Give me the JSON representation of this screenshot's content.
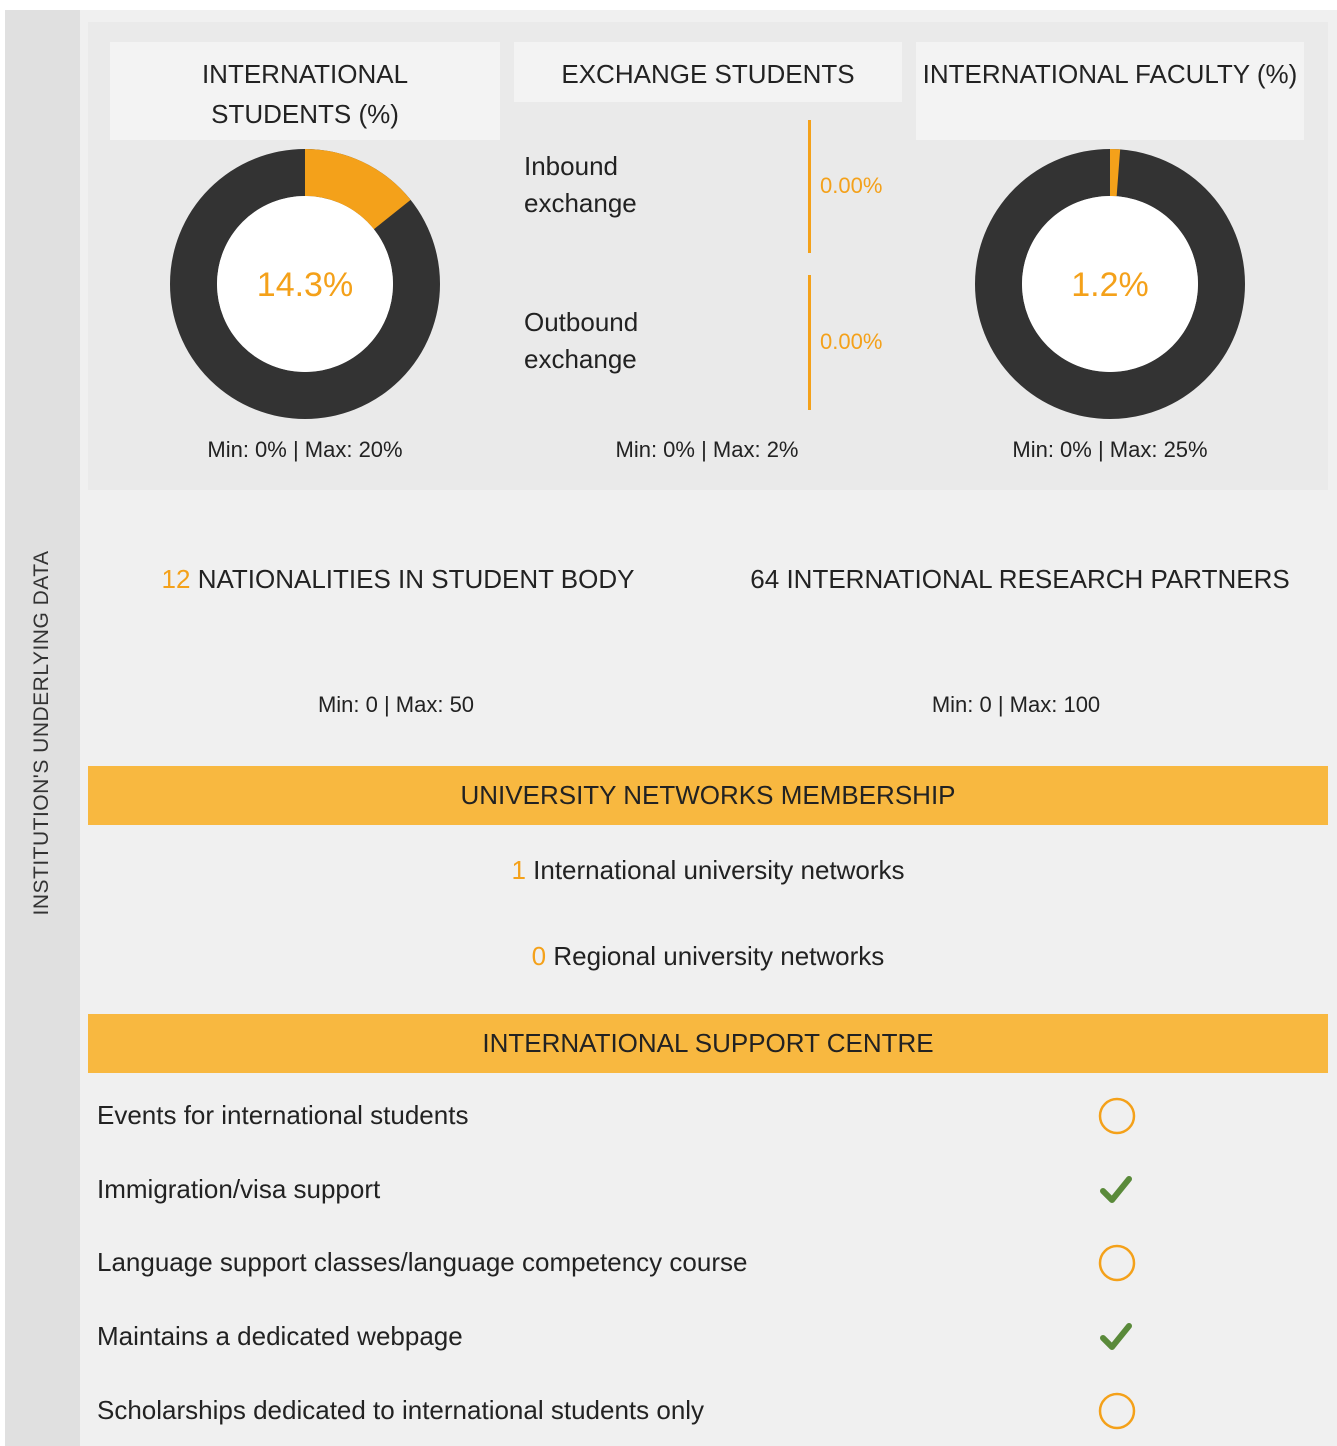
{
  "side_label": "INSTITUTION'S UNDERLYING DATA",
  "donuts": [
    {
      "title": "INTERNATIONAL STUDENTS (%)",
      "value": 14.3,
      "value_label": "14.3%",
      "range": "Min: 0% | Max: 20%"
    },
    {
      "title": "INTERNATIONAL FACULTY (%)",
      "value": 1.2,
      "value_label": "1.2%",
      "range": "Min: 0% | Max: 25%"
    }
  ],
  "exchange": {
    "title": "EXCHANGE STUDENTS",
    "items": [
      {
        "label": "Inbound exchange",
        "value": 0,
        "value_label": "0.00%"
      },
      {
        "label": "Outbound exchange",
        "value": 0,
        "value_label": "0.00%"
      }
    ],
    "range": "Min: 0% | Max: 2%"
  },
  "counts": [
    {
      "value": 12,
      "label": "NATIONALITIES IN STUDENT BODY",
      "range": "Min: 0 | Max: 50",
      "highlight": true
    },
    {
      "value": 64,
      "label": "INTERNATIONAL RESEARCH PARTNERS",
      "range": "Min: 0 | Max: 100",
      "highlight": false
    }
  ],
  "networks": {
    "title": "UNIVERSITY NETWORKS MEMBERSHIP",
    "items": [
      {
        "value": 1,
        "label": "International university networks"
      },
      {
        "value": 0,
        "label": "Regional university networks"
      }
    ]
  },
  "support": {
    "title": "INTERNATIONAL SUPPORT CENTRE",
    "items": [
      {
        "label": "Events for international students",
        "available": false
      },
      {
        "label": "Immigration/visa support",
        "available": true
      },
      {
        "label": "Language support classes/language competency course",
        "available": false
      },
      {
        "label": "Maintains a dedicated webpage",
        "available": true
      },
      {
        "label": "Scholarships dedicated to international students only",
        "available": false
      }
    ]
  }
}
